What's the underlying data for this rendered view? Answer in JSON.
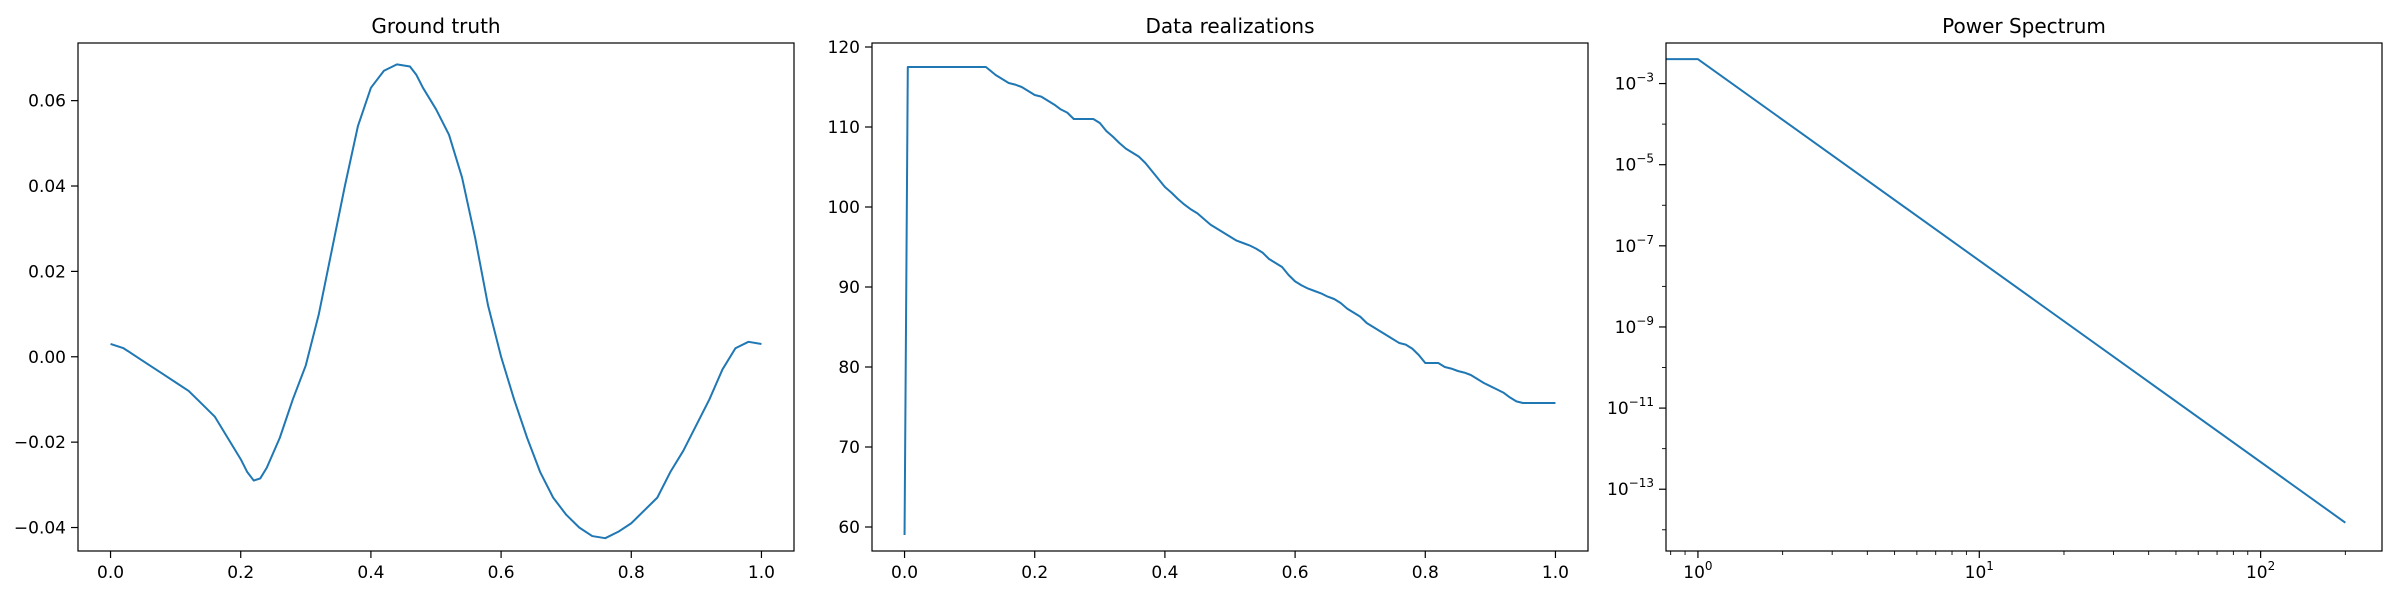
{
  "chart_data": [
    {
      "type": "line",
      "title": "Ground truth",
      "xlabel": "",
      "ylabel": "",
      "xlim": [
        -0.05,
        1.05
      ],
      "ylim": [
        -0.0455,
        0.0735
      ],
      "xscale": "linear",
      "yscale": "linear",
      "grid": false,
      "x_ticks": [
        0.0,
        0.2,
        0.4,
        0.6,
        0.8,
        1.0
      ],
      "x_tick_labels": [
        "0.0",
        "0.2",
        "0.4",
        "0.6",
        "0.8",
        "1.0"
      ],
      "y_ticks": [
        -0.04,
        -0.02,
        0.0,
        0.02,
        0.04,
        0.06
      ],
      "y_tick_labels": [
        "−0.04",
        "−0.02",
        "0.00",
        "0.02",
        "0.04",
        "0.06"
      ],
      "series": [
        {
          "color": "#1f77b4",
          "x": [
            0.0,
            0.02,
            0.05,
            0.08,
            0.1,
            0.12,
            0.14,
            0.16,
            0.18,
            0.2,
            0.21,
            0.22,
            0.23,
            0.24,
            0.26,
            0.28,
            0.3,
            0.32,
            0.34,
            0.36,
            0.38,
            0.4,
            0.42,
            0.44,
            0.46,
            0.47,
            0.48,
            0.5,
            0.52,
            0.54,
            0.56,
            0.58,
            0.6,
            0.62,
            0.64,
            0.66,
            0.68,
            0.7,
            0.72,
            0.74,
            0.76,
            0.78,
            0.8,
            0.82,
            0.84,
            0.86,
            0.88,
            0.9,
            0.92,
            0.94,
            0.96,
            0.98,
            1.0
          ],
          "y": [
            0.003,
            0.002,
            -0.001,
            -0.004,
            -0.006,
            -0.008,
            -0.011,
            -0.014,
            -0.019,
            -0.024,
            -0.027,
            -0.029,
            -0.0285,
            -0.026,
            -0.019,
            -0.01,
            -0.002,
            0.01,
            0.025,
            0.04,
            0.054,
            0.063,
            0.067,
            0.0685,
            0.068,
            0.066,
            0.063,
            0.058,
            0.052,
            0.042,
            0.028,
            0.012,
            0.0,
            -0.01,
            -0.019,
            -0.027,
            -0.033,
            -0.037,
            -0.04,
            -0.042,
            -0.0425,
            -0.041,
            -0.039,
            -0.036,
            -0.033,
            -0.027,
            -0.022,
            -0.016,
            -0.01,
            -0.003,
            0.002,
            0.0035,
            0.003
          ]
        }
      ]
    },
    {
      "type": "line",
      "title": "Data realizations",
      "xlabel": "",
      "ylabel": "",
      "xlim": [
        -0.05,
        1.05
      ],
      "ylim": [
        57.0,
        120.5
      ],
      "xscale": "linear",
      "yscale": "linear",
      "grid": false,
      "x_ticks": [
        0.0,
        0.2,
        0.4,
        0.6,
        0.8,
        1.0
      ],
      "x_tick_labels": [
        "0.0",
        "0.2",
        "0.4",
        "0.6",
        "0.8",
        "1.0"
      ],
      "y_ticks": [
        60,
        70,
        80,
        90,
        100,
        110,
        120
      ],
      "y_tick_labels": [
        "60",
        "70",
        "80",
        "90",
        "100",
        "110",
        "120"
      ],
      "series": [
        {
          "color": "#1f77b4",
          "x": [
            0.0,
            0.005,
            0.05,
            0.1,
            0.125,
            0.14,
            0.15,
            0.16,
            0.17,
            0.18,
            0.19,
            0.2,
            0.21,
            0.22,
            0.23,
            0.24,
            0.25,
            0.26,
            0.27,
            0.29,
            0.3,
            0.31,
            0.32,
            0.33,
            0.34,
            0.35,
            0.36,
            0.37,
            0.38,
            0.39,
            0.4,
            0.41,
            0.42,
            0.43,
            0.44,
            0.45,
            0.46,
            0.47,
            0.48,
            0.49,
            0.5,
            0.51,
            0.52,
            0.53,
            0.54,
            0.55,
            0.56,
            0.57,
            0.58,
            0.59,
            0.6,
            0.61,
            0.62,
            0.63,
            0.64,
            0.65,
            0.66,
            0.67,
            0.68,
            0.69,
            0.7,
            0.71,
            0.72,
            0.73,
            0.74,
            0.75,
            0.76,
            0.77,
            0.78,
            0.79,
            0.8,
            0.81,
            0.82,
            0.83,
            0.84,
            0.85,
            0.86,
            0.87,
            0.88,
            0.89,
            0.9,
            0.91,
            0.92,
            0.93,
            0.94,
            0.95,
            0.96,
            0.97,
            0.98,
            0.99,
            1.0
          ],
          "y": [
            59.0,
            117.5,
            117.5,
            117.5,
            117.5,
            116.5,
            116.0,
            115.5,
            115.3,
            115.0,
            114.5,
            114.0,
            113.8,
            113.3,
            112.8,
            112.2,
            111.8,
            111.0,
            111.0,
            111.0,
            110.5,
            109.5,
            108.8,
            108.0,
            107.3,
            106.8,
            106.3,
            105.5,
            104.5,
            103.5,
            102.5,
            101.8,
            101.0,
            100.3,
            99.7,
            99.2,
            98.5,
            97.8,
            97.3,
            96.8,
            96.3,
            95.8,
            95.5,
            95.2,
            94.8,
            94.3,
            93.5,
            93.0,
            92.5,
            91.5,
            90.7,
            90.2,
            89.8,
            89.5,
            89.2,
            88.8,
            88.5,
            88.0,
            87.3,
            86.8,
            86.3,
            85.5,
            85.0,
            84.5,
            84.0,
            83.5,
            83.0,
            82.8,
            82.3,
            81.5,
            80.5,
            80.5,
            80.5,
            80.0,
            79.8,
            79.5,
            79.3,
            79.0,
            78.5,
            78.0,
            77.6,
            77.2,
            76.8,
            76.2,
            75.7,
            75.5,
            75.5,
            75.5,
            75.5,
            75.5,
            75.5
          ]
        }
      ]
    },
    {
      "type": "line",
      "title": "Power Spectrum",
      "xlabel": "",
      "ylabel": "",
      "xlim": [
        0.77,
        270
      ],
      "ylim": [
        3e-15,
        0.01
      ],
      "xscale": "log",
      "yscale": "log",
      "grid": false,
      "x_ticks": [
        1,
        10,
        100
      ],
      "x_tick_labels": [
        "10",
        "10",
        "10"
      ],
      "x_tick_exponents": [
        "0",
        "1",
        "2"
      ],
      "y_ticks": [
        1e-13,
        1e-11,
        1e-09,
        1e-07,
        1e-05,
        0.001
      ],
      "y_tick_labels": [
        "10",
        "10",
        "10",
        "10",
        "10",
        "10"
      ],
      "y_tick_exponents": [
        "−13",
        "−11",
        "−9",
        "−7",
        "−5",
        "−3"
      ],
      "series": [
        {
          "color": "#1f77b4",
          "x": [
            0.77,
            1.0,
            200.0
          ],
          "y": [
            0.004,
            0.004,
            1.5e-14
          ]
        }
      ]
    }
  ]
}
